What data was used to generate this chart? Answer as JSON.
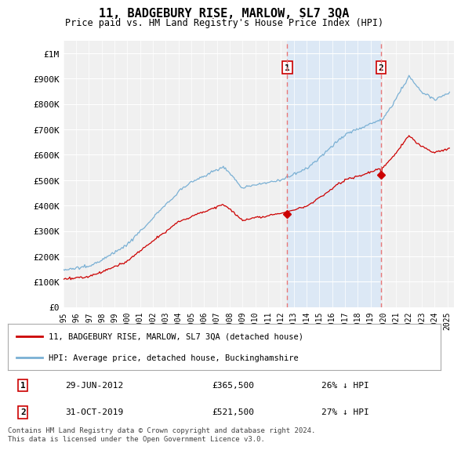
{
  "title": "11, BADGEBURY RISE, MARLOW, SL7 3QA",
  "subtitle": "Price paid vs. HM Land Registry's House Price Index (HPI)",
  "ylabel_ticks": [
    "£0",
    "£100K",
    "£200K",
    "£300K",
    "£400K",
    "£500K",
    "£600K",
    "£700K",
    "£800K",
    "£900K",
    "£1M"
  ],
  "ytick_values": [
    0,
    100000,
    200000,
    300000,
    400000,
    500000,
    600000,
    700000,
    800000,
    900000,
    1000000
  ],
  "ylim": [
    0,
    1050000
  ],
  "xlim_start": 1995.0,
  "xlim_end": 2025.5,
  "marker1_x": 2012.49,
  "marker1_y": 365500,
  "marker1_label": "1",
  "marker1_date": "29-JUN-2012",
  "marker1_price": "£365,500",
  "marker1_hpi": "26% ↓ HPI",
  "marker2_x": 2019.83,
  "marker2_y": 521500,
  "marker2_label": "2",
  "marker2_date": "31-OCT-2019",
  "marker2_price": "£521,500",
  "marker2_hpi": "27% ↓ HPI",
  "legend_property": "11, BADGEBURY RISE, MARLOW, SL7 3QA (detached house)",
  "legend_hpi": "HPI: Average price, detached house, Buckinghamshire",
  "footer": "Contains HM Land Registry data © Crown copyright and database right 2024.\nThis data is licensed under the Open Government Licence v3.0.",
  "property_color": "#cc0000",
  "hpi_color": "#7ab0d4",
  "shade_color": "#dce8f5",
  "marker_vline_color": "#e87878",
  "background_color": "#ffffff",
  "plot_bg_color": "#f0f0f0"
}
